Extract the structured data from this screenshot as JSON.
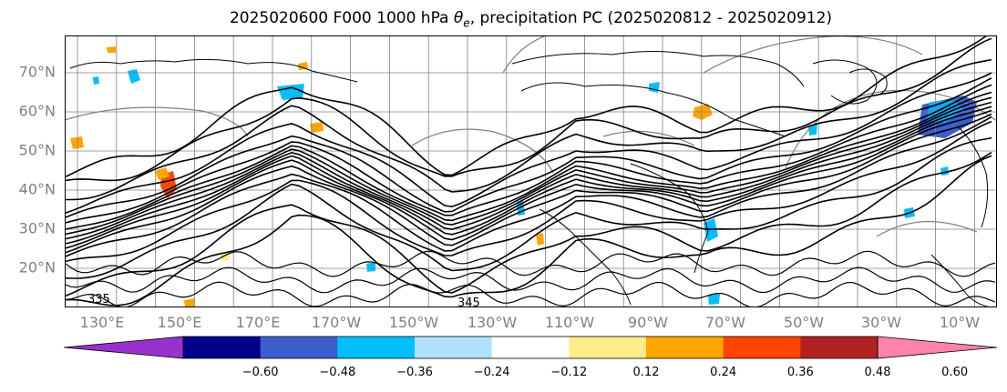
{
  "title": "2025020600 F000 1000 hPa θe, precipitation PC (2025020812 - 2025020912)",
  "title_parts": {
    "prefix": "2025020600 F000 1000 hPa ",
    "theta": "θ",
    "subscript": "e",
    "suffix": ", precipitation PC (2025020812 - 2025020912)"
  },
  "map": {
    "lat_labels": [
      "70°N",
      "60°N",
      "50°N",
      "40°N",
      "30°N",
      "20°N"
    ],
    "lon_labels": [
      "130°E",
      "150°E",
      "170°E",
      "170°W",
      "150°W",
      "130°W",
      "110°W",
      "90°W",
      "70°W",
      "50°W",
      "30°W",
      "10°W"
    ],
    "contour_labels": [
      "335",
      "345"
    ],
    "colors": {
      "contour": "#000000",
      "coastline": "#000000",
      "gridline": "#808080",
      "labels": "#808080"
    }
  },
  "colorbar": {
    "tick_labels": [
      "−0.60",
      "−0.48",
      "−0.36",
      "−0.24",
      "−0.12",
      "0.12",
      "0.24",
      "0.36",
      "0.48",
      "0.60"
    ],
    "colors": [
      "#9932cc",
      "#00008b",
      "#3a5fcd",
      "#00bfff",
      "#b0e2ff",
      "#ffffff",
      "#ffec8b",
      "#ffa500",
      "#ff4500",
      "#b22222",
      "#ff82ab"
    ]
  }
}
